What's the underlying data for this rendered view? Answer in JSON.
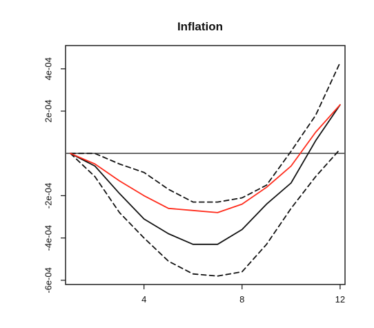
{
  "chart_data": {
    "type": "line",
    "title": "Inflation",
    "xlabel": "",
    "ylabel": "",
    "xlim": [
      0.8,
      12.2
    ],
    "ylim": [
      -0.00062,
      0.00051
    ],
    "x_ticks": [
      4,
      8,
      12
    ],
    "x_tick_labels": [
      "4",
      "8",
      "12"
    ],
    "y_ticks": [
      -0.0006,
      -0.0004,
      -0.0002,
      0.0002,
      0.0004
    ],
    "y_tick_labels": [
      "-6e-04",
      "-4e-04",
      "-2e-04",
      "2e-04",
      "4e-04"
    ],
    "grid": false,
    "legend": "none",
    "reference_line": {
      "y": 0,
      "color": "#555555"
    },
    "x": [
      1,
      2,
      3,
      4,
      5,
      6,
      7,
      8,
      9,
      10,
      11,
      12
    ],
    "series": [
      {
        "role": "point_estimate",
        "color": "#ff2a1a",
        "dash": "solid",
        "values": [
          0,
          -5e-05,
          -0.00013,
          -0.0002,
          -0.00026,
          -0.00027,
          -0.00028,
          -0.00024,
          -0.00016,
          -6e-05,
          0.0001,
          0.00023
        ]
      },
      {
        "role": "median",
        "color": "#111111",
        "dash": "solid",
        "values": [
          0,
          -6e-05,
          -0.00019,
          -0.00031,
          -0.00038,
          -0.00043,
          -0.00043,
          -0.00036,
          -0.00024,
          -0.00014,
          6e-05,
          0.00023
        ]
      },
      {
        "role": "upper_band",
        "color": "#111111",
        "dash": "dashed",
        "values": [
          0,
          0,
          -5e-05,
          -9e-05,
          -0.00017,
          -0.00023,
          -0.00023,
          -0.00021,
          -0.00015,
          1e-05,
          0.00018,
          0.00043
        ]
      },
      {
        "role": "lower_band",
        "color": "#111111",
        "dash": "dashed",
        "values": [
          0,
          -0.00011,
          -0.00028,
          -0.0004,
          -0.00051,
          -0.00057,
          -0.00058,
          -0.00056,
          -0.00043,
          -0.00026,
          -0.00011,
          2e-05
        ]
      }
    ]
  }
}
